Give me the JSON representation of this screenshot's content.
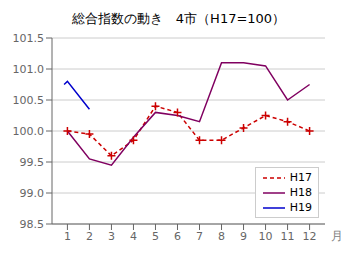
{
  "chart_data": {
    "type": "line",
    "title": "総合指数の動き　4市（H17=100）",
    "x_label": "月",
    "xlim": [
      0.3,
      12.7
    ],
    "xticks": [
      1,
      2,
      3,
      4,
      5,
      6,
      7,
      8,
      9,
      10,
      11,
      12
    ],
    "ylim": [
      98.5,
      101.5
    ],
    "yticks": [
      98.5,
      {
        "value": 99.0,
        "label": "99.0"
      },
      99.5,
      {
        "value": 100.0,
        "label": "100.0"
      },
      100.5,
      {
        "value": 101.0,
        "label": "101.0"
      },
      101.5
    ],
    "grid": "y",
    "legend": "lower right",
    "series": [
      {
        "name": "H17",
        "color": "#cc0000",
        "line_style": "dashed",
        "marker": "+",
        "x": [
          1,
          2,
          3,
          4,
          5,
          6,
          7,
          8,
          9,
          10,
          11,
          12
        ],
        "values": [
          100.0,
          99.95,
          99.6,
          99.85,
          100.4,
          100.3,
          99.85,
          99.85,
          100.05,
          100.25,
          100.15,
          100.0
        ]
      },
      {
        "name": "H18",
        "color": "#800060",
        "line_style": "solid",
        "x": [
          1,
          2,
          3,
          4,
          5,
          6,
          7,
          8,
          9,
          10,
          11,
          12
        ],
        "values": [
          100.0,
          99.55,
          99.45,
          99.9,
          100.3,
          100.25,
          100.15,
          101.1,
          101.1,
          101.05,
          100.5,
          100.75
        ]
      },
      {
        "name": "H19",
        "color": "#0000cc",
        "line_style": "solid",
        "x": [
          0.85,
          1,
          2
        ],
        "values": [
          100.75,
          100.8,
          100.35
        ]
      }
    ]
  }
}
